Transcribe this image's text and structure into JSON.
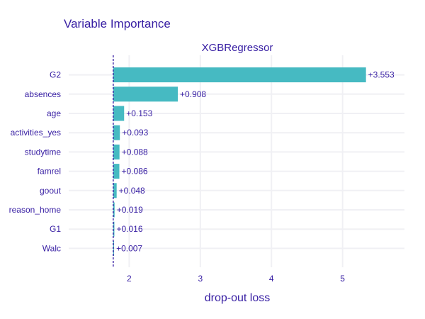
{
  "chart_data": {
    "type": "bar",
    "orientation": "horizontal",
    "title": "Variable Importance",
    "subtitle": "XGBRegressor",
    "xlabel": "drop-out loss",
    "ylabel": "",
    "baseline": 1.776,
    "xlim": [
      1.15,
      5.87
    ],
    "xticks": [
      2,
      3,
      4,
      5
    ],
    "grid": true,
    "bar_color": "#46bac2",
    "baseline_color": "#371ea3",
    "text_color": "#371ea3",
    "categories": [
      "G2",
      "absences",
      "age",
      "activities_yes",
      "studytime",
      "famrel",
      "goout",
      "reason_home",
      "G1",
      "Walc"
    ],
    "contributions": [
      3.553,
      0.908,
      0.153,
      0.093,
      0.088,
      0.086,
      0.048,
      0.019,
      0.016,
      0.007
    ],
    "labels": [
      "+3.553",
      "+0.908",
      "+0.153",
      "+0.093",
      "+0.088",
      "+0.086",
      "+0.048",
      "+0.019",
      "+0.016",
      "+0.007"
    ]
  }
}
